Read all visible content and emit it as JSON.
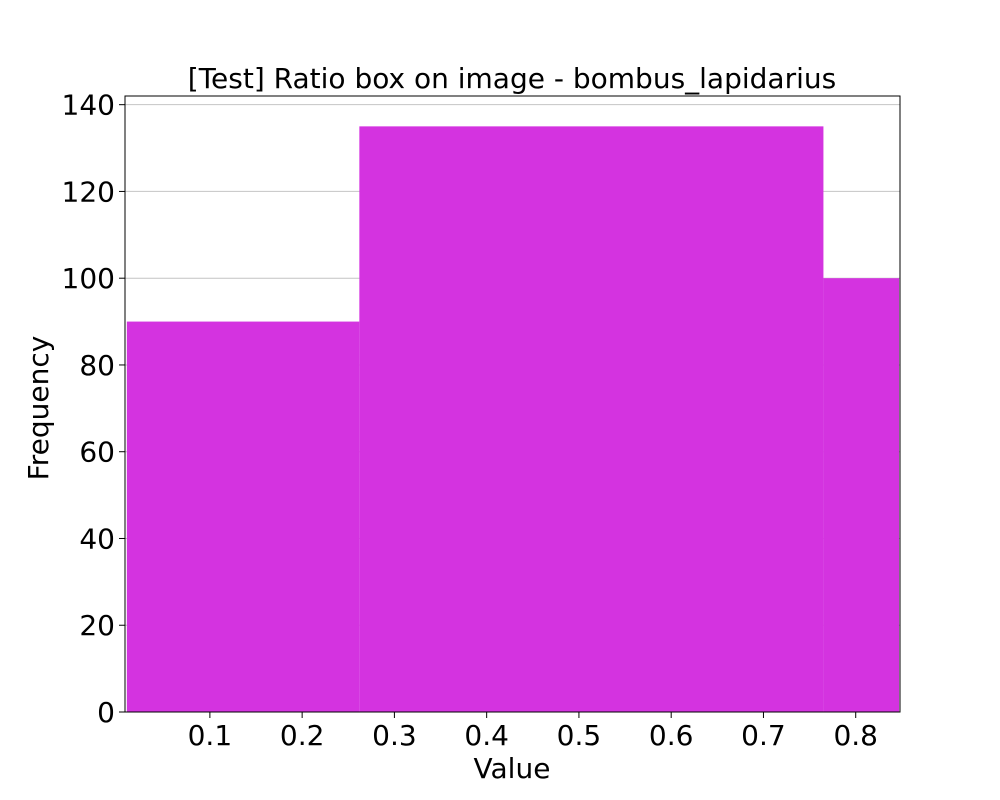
{
  "chart_data": {
    "type": "bar",
    "title": "[Test] Ratio box on image - bombus_lapidarius",
    "xlabel": "Value",
    "ylabel": "Frequency",
    "xlim": [
      0.008,
      0.848
    ],
    "ylim": [
      0,
      142
    ],
    "x_ticks": [
      "0.1",
      "0.2",
      "0.3",
      "0.4",
      "0.5",
      "0.6",
      "0.7",
      "0.8"
    ],
    "y_ticks": [
      "0",
      "20",
      "40",
      "60",
      "80",
      "100",
      "120",
      "140"
    ],
    "grid": "y",
    "bar_color": "#d433e0",
    "bins": [
      {
        "x0": 0.01,
        "x1": 0.262,
        "value": 90
      },
      {
        "x0": 0.262,
        "x1": 0.765,
        "value": 135
      },
      {
        "x0": 0.765,
        "x1": 0.847,
        "value": 100
      }
    ]
  }
}
